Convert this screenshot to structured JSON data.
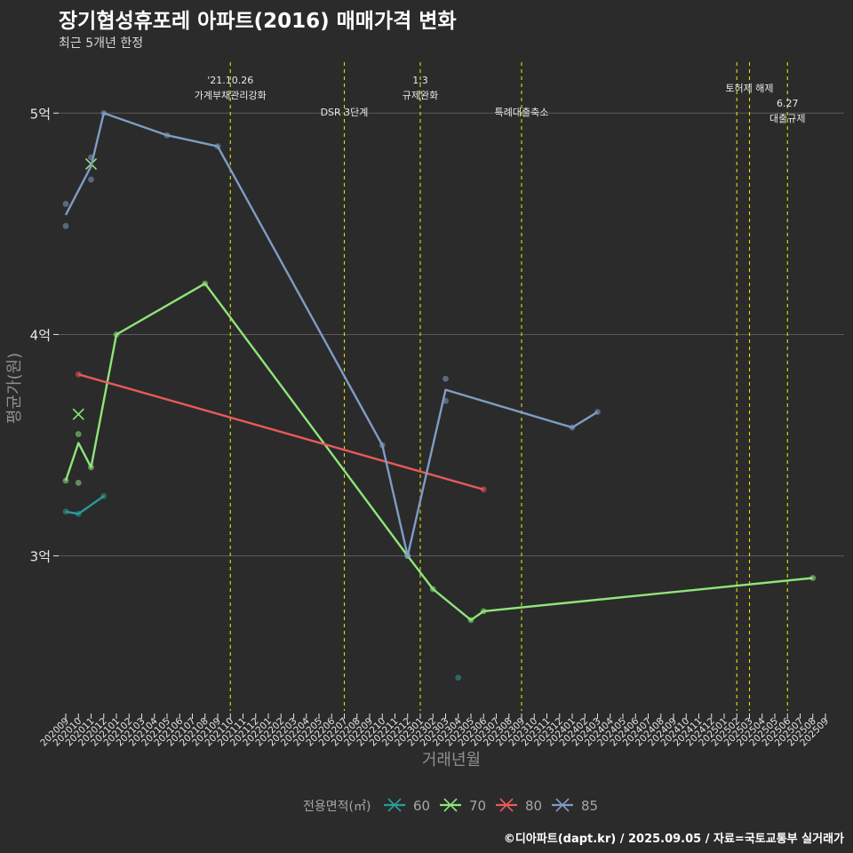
{
  "title": "장기협성휴포레 아파트(2016) 매매가격 변화",
  "subtitle": "최근 5개년 한정",
  "footer": "©디아파트(dapt.kr) / 2025.09.05 / 자료=국토교통부 실거래가",
  "colors": {
    "background": "#2b2b2b",
    "grid": "#5a5a5a",
    "event_line": "#e0e000",
    "axis_text": "#e6e6e6",
    "axis_title": "#8f8f8f"
  },
  "chart_data": {
    "type": "line",
    "xlabel": "거래년월",
    "ylabel": "평균가(원)",
    "x_ticks": [
      "202009",
      "202010",
      "202011",
      "202012",
      "202101",
      "202102",
      "202103",
      "202104",
      "202105",
      "202106",
      "202107",
      "202108",
      "202109",
      "202110",
      "202111",
      "202112",
      "202201",
      "202202",
      "202203",
      "202204",
      "202205",
      "202206",
      "202207",
      "202208",
      "202209",
      "202210",
      "202211",
      "202212",
      "202301",
      "202302",
      "202303",
      "202304",
      "202305",
      "202306",
      "202307",
      "202308",
      "202309",
      "202310",
      "202311",
      "202312",
      "202401",
      "202402",
      "202403",
      "202404",
      "202405",
      "202406",
      "202407",
      "202408",
      "202409",
      "202410",
      "202411",
      "202412",
      "202501",
      "202502",
      "202503",
      "202504",
      "202505",
      "202506",
      "202507",
      "202508",
      "202509"
    ],
    "y_ticks": [
      {
        "value": 300000000,
        "label": "3억"
      },
      {
        "value": 400000000,
        "label": "4억"
      },
      {
        "value": 500000000,
        "label": "5억"
      }
    ],
    "ylim": [
      230000000,
      523000000
    ],
    "grid": true,
    "legend_title": "전용면적(㎡)",
    "legend_position": "bottom",
    "series": [
      {
        "name": "60",
        "color": "#2a9d99",
        "line": [
          [
            "202009",
            320000000
          ],
          [
            "202010",
            319000000
          ],
          [
            "202012",
            327000000
          ]
        ],
        "points": [
          [
            "202009",
            320000000
          ],
          [
            "202010",
            319000000
          ],
          [
            "202012",
            327000000
          ],
          [
            "202304",
            245000000
          ]
        ],
        "cross_points": []
      },
      {
        "name": "70",
        "color": "#8fe57a",
        "line": [
          [
            "202009",
            334000000
          ],
          [
            "202010",
            351000000
          ],
          [
            "202011",
            340000000
          ],
          [
            "202101",
            400000000
          ],
          [
            "202108",
            423000000
          ],
          [
            "202212",
            300000000
          ],
          [
            "202302",
            285000000
          ],
          [
            "202305",
            271000000
          ],
          [
            "202306",
            275000000
          ],
          [
            "202508",
            290000000
          ]
        ],
        "points": [
          [
            "202009",
            334000000
          ],
          [
            "202010",
            333000000
          ],
          [
            "202010",
            355000000
          ],
          [
            "202011",
            340000000
          ],
          [
            "202101",
            400000000
          ],
          [
            "202108",
            423000000
          ],
          [
            "202212",
            300000000
          ],
          [
            "202302",
            285000000
          ],
          [
            "202305",
            271000000
          ],
          [
            "202306",
            275000000
          ],
          [
            "202508",
            290000000
          ]
        ],
        "cross_points": [
          [
            "202010",
            364000000
          ],
          [
            "202011",
            477000000
          ]
        ]
      },
      {
        "name": "80",
        "color": "#e85a5a",
        "line": [
          [
            "202010",
            382000000
          ],
          [
            "202306",
            330000000
          ]
        ],
        "points": [
          [
            "202010",
            382000000
          ],
          [
            "202306",
            330000000
          ]
        ],
        "cross_points": []
      },
      {
        "name": "85",
        "color": "#7f9cc4",
        "line": [
          [
            "202009",
            454000000
          ],
          [
            "202011",
            476000000
          ],
          [
            "202012",
            500000000
          ],
          [
            "202105",
            490000000
          ],
          [
            "202109",
            485000000
          ],
          [
            "202210",
            350000000
          ],
          [
            "202212",
            300000000
          ],
          [
            "202303",
            375000000
          ],
          [
            "202401",
            358000000
          ],
          [
            "202403",
            365000000
          ]
        ],
        "points": [
          [
            "202009",
            459000000
          ],
          [
            "202009",
            449000000
          ],
          [
            "202011",
            480000000
          ],
          [
            "202011",
            470000000
          ],
          [
            "202012",
            500000000
          ],
          [
            "202105",
            490000000
          ],
          [
            "202109",
            485000000
          ],
          [
            "202210",
            350000000
          ],
          [
            "202212",
            300000000
          ],
          [
            "202303",
            380000000
          ],
          [
            "202303",
            370000000
          ],
          [
            "202401",
            358000000
          ],
          [
            "202403",
            365000000
          ]
        ],
        "cross_points": []
      }
    ],
    "annotations": [
      {
        "x": "202110",
        "lines": [
          "'21.10.26",
          "가계부채관리강화"
        ],
        "row": "upper"
      },
      {
        "x": "202207",
        "lines": [
          "DSR 3단계"
        ],
        "row": "lower"
      },
      {
        "x": "202301",
        "lines": [
          "1.3",
          "규제완화"
        ],
        "row": "upper"
      },
      {
        "x": "202309",
        "lines": [
          "특례대출축소"
        ],
        "row": "lower"
      },
      {
        "x": "202502",
        "lines": [],
        "row": "none"
      },
      {
        "x": "202503",
        "lines": [
          "토허제 해제"
        ],
        "row": "middle"
      },
      {
        "x": "202506",
        "lines": [
          "6.27",
          "대출규제"
        ],
        "row": "low2"
      }
    ]
  }
}
